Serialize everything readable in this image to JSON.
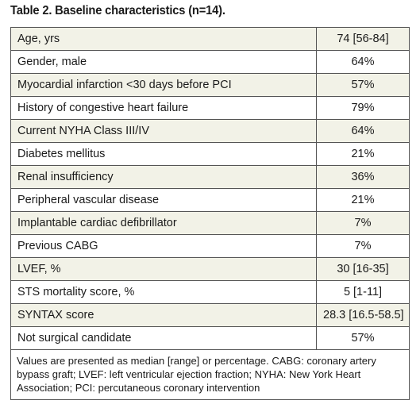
{
  "title": "Table 2. Baseline characteristics (n=14).",
  "rows": [
    {
      "label": "Age, yrs",
      "value": "74 [56-84]"
    },
    {
      "label": "Gender, male",
      "value": "64%"
    },
    {
      "label": "Myocardial infarction <30 days before PCI",
      "value": "57%"
    },
    {
      "label": "History of congestive heart failure",
      "value": "79%"
    },
    {
      "label": "Current NYHA Class III/IV",
      "value": "64%"
    },
    {
      "label": "Diabetes mellitus",
      "value": "21%"
    },
    {
      "label": "Renal insufficiency",
      "value": "36%"
    },
    {
      "label": "Peripheral vascular disease",
      "value": "21%"
    },
    {
      "label": "Implantable cardiac defibrillator",
      "value": "7%"
    },
    {
      "label": "Previous CABG",
      "value": "7%"
    },
    {
      "label": "LVEF, %",
      "value": "30 [16-35]"
    },
    {
      "label": "STS mortality score, %",
      "value": "5 [1-11]"
    },
    {
      "label": "SYNTAX score",
      "value": "28.3 [16.5-58.5]"
    },
    {
      "label": "Not surgical candidate",
      "value": "57%"
    }
  ],
  "footnote": "Values are presented as median [range] or percentage. CABG: coronary artery bypass graft; LVEF: left ventricular ejection fraction; NYHA: New York Heart Association; PCI: percutaneous coronary intervention",
  "colors": {
    "shaded_row": "#f2f2e7",
    "border": "#555555",
    "text": "#1a1a1a"
  }
}
